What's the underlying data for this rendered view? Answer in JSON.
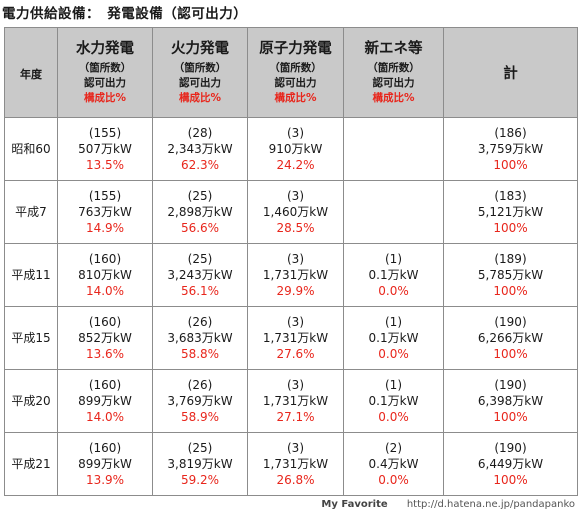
{
  "title": "電力供給設備：　発電設備（認可出力）",
  "header": {
    "year": "年度",
    "columns": [
      {
        "name": "水力発電",
        "sub1": "（箇所数）",
        "sub2": "認可出力",
        "sub3": "構成比%"
      },
      {
        "name": "火力発電",
        "sub1": "（箇所数）",
        "sub2": "認可出力",
        "sub3": "構成比%"
      },
      {
        "name": "原子力発電",
        "sub1": "（箇所数）",
        "sub2": "認可出力",
        "sub3": "構成比%"
      },
      {
        "name": "新エネ等",
        "sub1": "（箇所数）",
        "sub2": "認可出力",
        "sub3": "構成比%"
      }
    ],
    "total": "計"
  },
  "rows": [
    {
      "year": "昭和60",
      "cells": [
        {
          "count": "(155)",
          "output": "507万kW",
          "pct": "13.5%"
        },
        {
          "count": "(28)",
          "output": "2,343万kW",
          "pct": "62.3%"
        },
        {
          "count": "(3)",
          "output": "910万kW",
          "pct": "24.2%"
        },
        {
          "count": "",
          "output": "",
          "pct": ""
        },
        {
          "count": "(186)",
          "output": "3,759万kW",
          "pct": "100%"
        }
      ]
    },
    {
      "year": "平成7",
      "cells": [
        {
          "count": "(155)",
          "output": "763万kW",
          "pct": "14.9%"
        },
        {
          "count": "(25)",
          "output": "2,898万kW",
          "pct": "56.6%"
        },
        {
          "count": "(3)",
          "output": "1,460万kW",
          "pct": "28.5%"
        },
        {
          "count": "",
          "output": "",
          "pct": ""
        },
        {
          "count": "(183)",
          "output": "5,121万kW",
          "pct": "100%"
        }
      ]
    },
    {
      "year": "平成11",
      "cells": [
        {
          "count": "(160)",
          "output": "810万kW",
          "pct": "14.0%"
        },
        {
          "count": "(25)",
          "output": "3,243万kW",
          "pct": "56.1%"
        },
        {
          "count": "(3)",
          "output": "1,731万kW",
          "pct": "29.9%"
        },
        {
          "count": "(1)",
          "output": "0.1万kW",
          "pct": "0.0%"
        },
        {
          "count": "(189)",
          "output": "5,785万kW",
          "pct": "100%"
        }
      ]
    },
    {
      "year": "平成15",
      "cells": [
        {
          "count": "(160)",
          "output": "852万kW",
          "pct": "13.6%"
        },
        {
          "count": "(26)",
          "output": "3,683万kW",
          "pct": "58.8%"
        },
        {
          "count": "(3)",
          "output": "1,731万kW",
          "pct": "27.6%"
        },
        {
          "count": "(1)",
          "output": "0.1万kW",
          "pct": "0.0%"
        },
        {
          "count": "(190)",
          "output": "6,266万kW",
          "pct": "100%"
        }
      ]
    },
    {
      "year": "平成20",
      "cells": [
        {
          "count": "(160)",
          "output": "899万kW",
          "pct": "14.0%"
        },
        {
          "count": "(26)",
          "output": "3,769万kW",
          "pct": "58.9%"
        },
        {
          "count": "(3)",
          "output": "1,731万kW",
          "pct": "27.1%"
        },
        {
          "count": "(1)",
          "output": "0.1万kW",
          "pct": "0.0%"
        },
        {
          "count": "(190)",
          "output": "6,398万kW",
          "pct": "100%"
        }
      ]
    },
    {
      "year": "平成21",
      "cells": [
        {
          "count": "(160)",
          "output": "899万kW",
          "pct": "13.9%"
        },
        {
          "count": "(25)",
          "output": "3,819万kW",
          "pct": "59.2%"
        },
        {
          "count": "(3)",
          "output": "1,731万kW",
          "pct": "26.8%"
        },
        {
          "count": "(2)",
          "output": "0.4万kW",
          "pct": "0.0%"
        },
        {
          "count": "(190)",
          "output": "6,449万kW",
          "pct": "100%"
        }
      ]
    }
  ],
  "footer": {
    "favorite": "My Favorite",
    "url": "http://d.hatena.ne.jp/pandapanko"
  },
  "colors": {
    "header_bg": "#c9c9c9",
    "percent_red": "#e8261c",
    "border": "#8c8c8c"
  }
}
